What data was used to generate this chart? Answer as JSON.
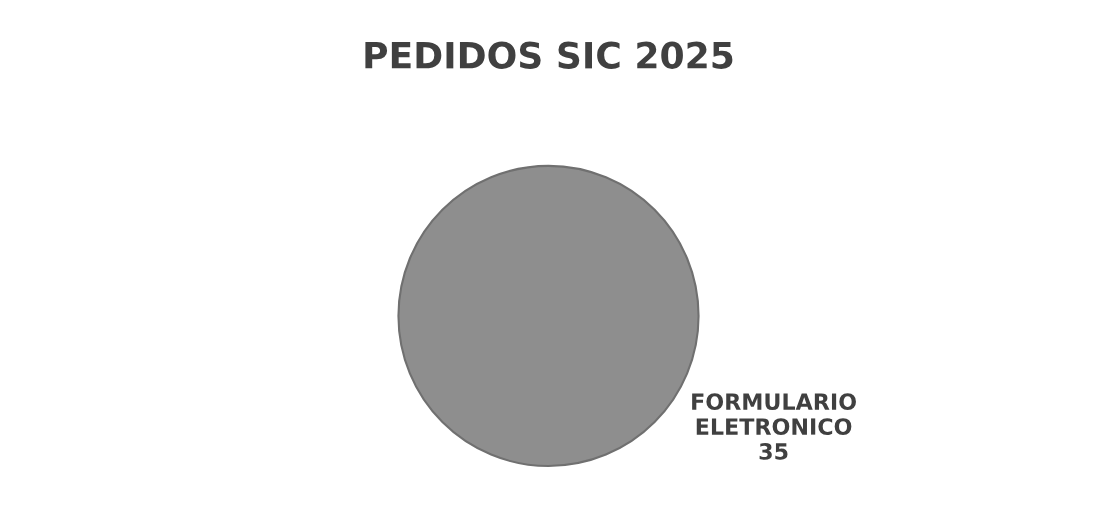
{
  "chart_data": {
    "type": "pie",
    "title": "PEDIDOS SIC 2025",
    "categories": [
      "FORMULARIO ELETRONICO"
    ],
    "values": [
      35
    ],
    "colors": [
      "#8e8e8e"
    ],
    "data_labels": true,
    "legend": false
  }
}
